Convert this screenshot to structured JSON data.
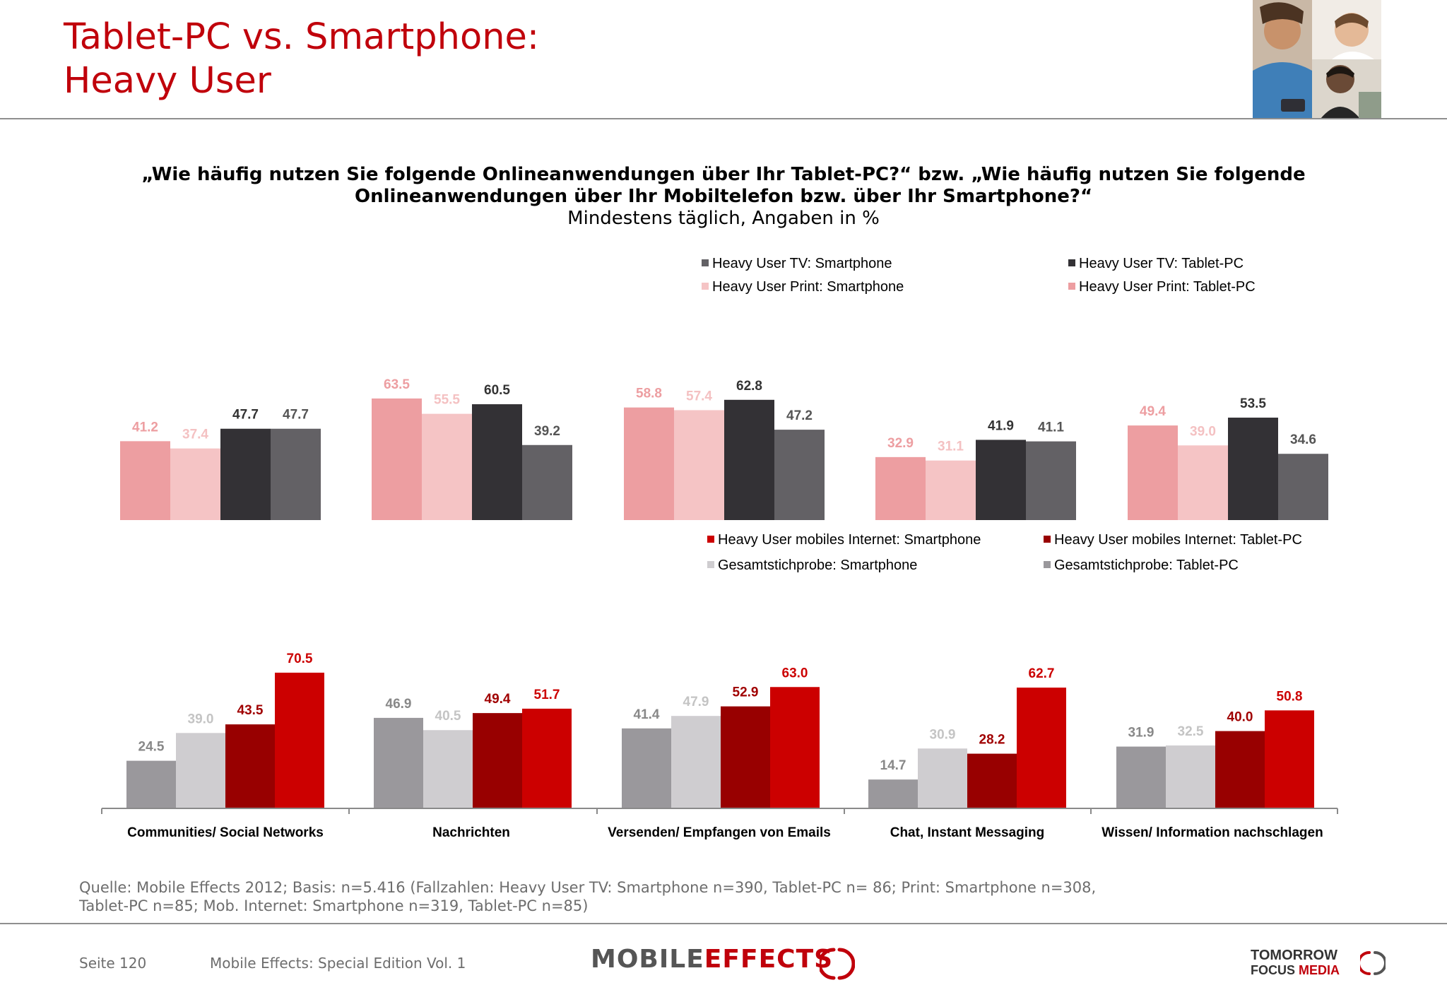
{
  "header": {
    "title_line1": "Tablet-PC vs. Smartphone:",
    "title_line2": "Heavy User"
  },
  "chart_heading": {
    "line1": "„Wie häufig nutzen Sie folgende Onlineanwendungen über Ihr Tablet-PC?“ bzw. „Wie häufig nutzen Sie folgende",
    "line2": "Onlineanwendungen über Ihr Mobiltelefon bzw. über Ihr Smartphone?“",
    "line3": "Mindestens täglich, Angaben in %"
  },
  "chart_data": [
    {
      "type": "bar",
      "title": "",
      "categories": [
        "Communities/ Social Networks",
        "Nachrichten",
        "Versenden/ Empfangen von Emails",
        "Chat, Instant Messaging",
        "Wissen/ Information nachschlagen"
      ],
      "legend_placement": "top-right",
      "grid": false,
      "ylim": [
        0,
        75
      ],
      "series": [
        {
          "name": "Heavy User Print: Tablet-PC",
          "color": "#ed9ea1",
          "label_color": "#ed9ea1",
          "values": [
            41.2,
            63.5,
            58.8,
            32.9,
            49.4
          ]
        },
        {
          "name": "Heavy User Print: Smartphone",
          "color": "#f5c4c5",
          "label_color": "#f4c1c2",
          "values": [
            37.4,
            55.5,
            57.4,
            31.1,
            39.0
          ]
        },
        {
          "name": "Heavy User TV: Tablet-PC",
          "color": "#333135",
          "label_color": "#333333",
          "values": [
            47.7,
            60.5,
            62.8,
            41.9,
            53.5
          ]
        },
        {
          "name": "Heavy User TV: Smartphone",
          "color": "#636165",
          "label_color": "#555555",
          "values": [
            47.7,
            39.2,
            47.2,
            41.1,
            34.6
          ]
        }
      ]
    },
    {
      "type": "bar",
      "title": "",
      "categories": [
        "Communities/ Social Networks",
        "Nachrichten",
        "Versenden/ Empfangen von Emails",
        "Chat, Instant Messaging",
        "Wissen/ Information nachschlagen"
      ],
      "legend_placement": "top-right",
      "grid": false,
      "ylim": [
        0,
        75
      ],
      "series": [
        {
          "name": "Gesamtstichprobe: Tablet-PC",
          "color": "#9a989c",
          "label_color": "#888888",
          "values": [
            24.5,
            46.9,
            41.4,
            14.7,
            31.9
          ]
        },
        {
          "name": "Gesamtstichprobe: Smartphone",
          "color": "#cfcdd0",
          "label_color": "#c4c4c4",
          "values": [
            39.0,
            40.5,
            47.9,
            30.9,
            32.5
          ]
        },
        {
          "name": "Heavy User mobiles Internet: Tablet-PC",
          "color": "#980000",
          "label_color": "#a00000",
          "values": [
            43.5,
            49.4,
            52.9,
            28.2,
            40.0
          ]
        },
        {
          "name": "Heavy User mobiles Internet: Smartphone",
          "color": "#cc0000",
          "label_color": "#cc0000",
          "values": [
            70.5,
            51.7,
            63.0,
            62.7,
            50.8
          ]
        }
      ]
    }
  ],
  "legends": {
    "top": [
      {
        "label": "Heavy User TV: Smartphone",
        "color": "#636165"
      },
      {
        "label": "Heavy User TV: Tablet-PC",
        "color": "#333135"
      },
      {
        "label": "Heavy User Print: Smartphone",
        "color": "#f5c4c5"
      },
      {
        "label": "Heavy User Print: Tablet-PC",
        "color": "#ed9ea1"
      }
    ],
    "bottom": [
      {
        "label": "Heavy User mobiles Internet: Smartphone",
        "color": "#cc0000"
      },
      {
        "label": "Heavy User mobiles Internet: Tablet-PC",
        "color": "#980000"
      },
      {
        "label": "Gesamtstichprobe: Smartphone",
        "color": "#cfcdd0"
      },
      {
        "label": "Gesamtstichprobe: Tablet-PC",
        "color": "#9a989c"
      }
    ]
  },
  "source": {
    "line1": "Quelle: Mobile Effects 2012; Basis: n=5.416 (Fallzahlen: Heavy User TV: Smartphone n=390, Tablet-PC n= 86; Print: Smartphone n=308,",
    "line2": "Tablet-PC n=85; Mob. Internet: Smartphone n=319, Tablet-PC n=85)"
  },
  "footer": {
    "page": "Seite 120",
    "publication": "Mobile Effects: Special Edition Vol. 1",
    "brand_part1": "MOBILE",
    "brand_part2": "EFFECTS",
    "tfm_line1": "TOMORROW",
    "tfm_line2a": "FOCUS ",
    "tfm_line2b": "MEDIA"
  },
  "icons": {
    "photo": "people-using-devices-photo-icon",
    "brand_ring": "mobile-effects-ring-icon",
    "tfm_ring": "tomorrow-focus-ring-icon"
  }
}
